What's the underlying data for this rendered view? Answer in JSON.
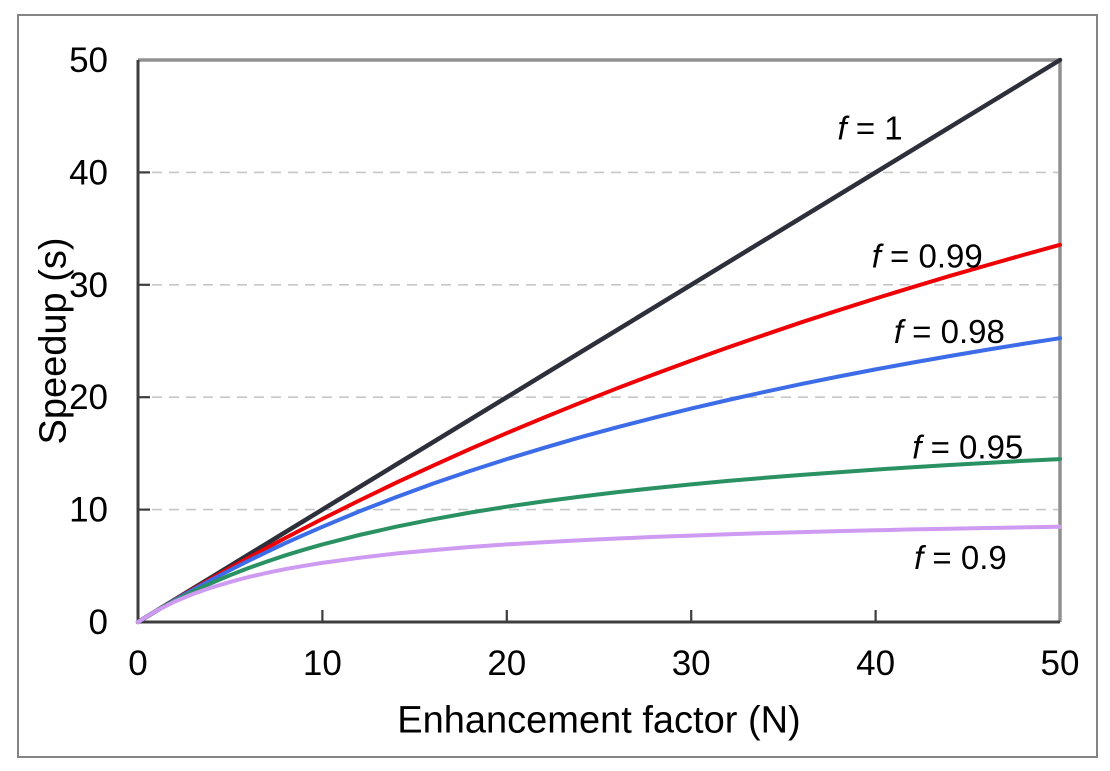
{
  "figure": {
    "background": "#ffffff",
    "border_color": "#848484"
  },
  "chart_data": {
    "type": "line",
    "title": "",
    "xlabel": "Enhancement factor (N)",
    "ylabel": "Speedup (s)",
    "xlim": [
      0,
      50
    ],
    "ylim": [
      0,
      50
    ],
    "x_ticks": [
      0,
      10,
      20,
      30,
      40,
      50
    ],
    "y_ticks": [
      0,
      10,
      20,
      30,
      40,
      50
    ],
    "grid": {
      "y_values": [
        10,
        20,
        30,
        40
      ],
      "style": "dashed",
      "color": "#c7c7c7"
    },
    "axis_color": "#3d3d3d",
    "box_color": "#909090",
    "legend_position": "inline-labels",
    "x": [
      0,
      1,
      2,
      3,
      4,
      5,
      6,
      7,
      8,
      9,
      10,
      12,
      14,
      16,
      18,
      20,
      22,
      24,
      26,
      28,
      30,
      32,
      34,
      36,
      38,
      40,
      42,
      44,
      46,
      48,
      50
    ],
    "series": [
      {
        "id": "f-1",
        "name": "f = 1",
        "f": 1.0,
        "color": "#2d2f3a",
        "width": 4.5,
        "label_x": 39.7,
        "label_y": 44.0,
        "values": [
          0,
          1,
          2,
          3,
          4,
          5,
          6,
          7,
          8,
          9,
          10,
          12,
          14,
          16,
          18,
          20,
          22,
          24,
          26,
          28,
          30,
          32,
          34,
          36,
          38,
          40,
          42,
          44,
          46,
          48,
          50
        ]
      },
      {
        "id": "f-0.99",
        "name": "f = 0.99",
        "f": 0.99,
        "color": "#ee0004",
        "width": 4,
        "label_x": 42.8,
        "label_y": 32.6,
        "values": [
          0,
          1,
          1.98,
          2.94,
          3.88,
          4.81,
          5.71,
          6.6,
          7.48,
          8.33,
          9.17,
          10.81,
          12.39,
          13.91,
          15.38,
          16.81,
          18.18,
          19.51,
          20.8,
          22.05,
          23.26,
          24.43,
          25.56,
          26.67,
          27.74,
          28.78,
          29.79,
          30.77,
          31.72,
          32.65,
          33.56
        ]
      },
      {
        "id": "f-0.98",
        "name": "f = 0.98",
        "f": 0.98,
        "color": "#3d6ce8",
        "width": 4,
        "label_x": 44.0,
        "label_y": 25.9,
        "values": [
          0,
          1,
          1.96,
          2.88,
          3.77,
          4.63,
          5.45,
          6.25,
          7.02,
          7.76,
          8.47,
          9.84,
          11.11,
          12.31,
          13.43,
          14.49,
          15.49,
          16.44,
          17.33,
          18.18,
          18.99,
          19.75,
          20.48,
          21.18,
          21.84,
          22.47,
          23.08,
          23.66,
          24.21,
          24.74,
          25.25
        ]
      },
      {
        "id": "f-0.95",
        "name": "f = 0.95",
        "f": 0.95,
        "color": "#2a9162",
        "width": 4,
        "label_x": 45.0,
        "label_y": 15.6,
        "values": [
          0,
          1,
          1.9,
          2.73,
          3.48,
          4.17,
          4.8,
          5.38,
          5.93,
          6.43,
          6.9,
          7.74,
          8.48,
          9.14,
          9.73,
          10.26,
          10.73,
          11.16,
          11.56,
          11.91,
          12.24,
          12.55,
          12.83,
          13.09,
          13.33,
          13.56,
          13.77,
          13.97,
          14.15,
          14.33,
          14.49
        ]
      },
      {
        "id": "f-0.9",
        "name": "f = 0.9",
        "f": 0.9,
        "color": "#cf9af2",
        "width": 4,
        "label_x": 44.6,
        "label_y": 5.8,
        "values": [
          0,
          1,
          1.82,
          2.5,
          3.08,
          3.57,
          4,
          4.38,
          4.71,
          5,
          5.26,
          5.71,
          6.09,
          6.4,
          6.67,
          6.9,
          7.1,
          7.27,
          7.43,
          7.57,
          7.69,
          7.8,
          7.91,
          8,
          8.09,
          8.16,
          8.24,
          8.3,
          8.36,
          8.42,
          8.47
        ]
      }
    ]
  }
}
